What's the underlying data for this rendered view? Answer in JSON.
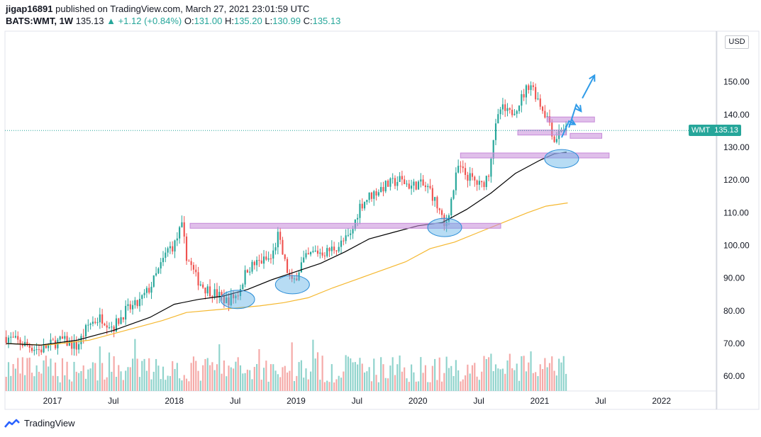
{
  "header": {
    "author": "jigap16891",
    "published": "published on TradingView.com, March 27, 2021 23:01:59 UTC",
    "symbol": "BATS:WMT, 1W",
    "last": "135.13",
    "arrow": "▲",
    "change": "+1.12 (+0.84%)",
    "o_label": "O:",
    "o_val": "131.00",
    "h_label": "H:",
    "h_val": "135.20",
    "l_label": "L:",
    "l_val": "130.99",
    "c_label": "C:",
    "c_val": "135.13"
  },
  "price_tag": {
    "ticker": "WMT",
    "value": "135.13"
  },
  "currency": "USD",
  "footer": {
    "brand": "TradingView",
    "logo_icon": "tradingview-logo-icon"
  },
  "colors": {
    "up": "#26a69a",
    "down": "#ef5350",
    "up_vol": "#8fd3cc",
    "down_vol": "#f5a9a7",
    "ma_black": "#000000",
    "ma_orange": "#f5b830",
    "zone": "#c78ad9",
    "circle": "#5fb1e6",
    "arrow": "#2f9be8"
  },
  "chart_data": {
    "type": "candlestick",
    "y_ticks": [
      "150.00",
      "140.00",
      "130.00",
      "120.00",
      "110.00",
      "100.00",
      "90.00",
      "80.00",
      "70.00",
      "60.00"
    ],
    "y_range": [
      55.5,
      165.5
    ],
    "x_ticks": [
      {
        "label": "2017",
        "date": 2017.0
      },
      {
        "label": "Jul",
        "date": 2017.5
      },
      {
        "label": "2018",
        "date": 2018.0
      },
      {
        "label": "Jul",
        "date": 2018.5
      },
      {
        "label": "2019",
        "date": 2019.0
      },
      {
        "label": "Jul",
        "date": 2019.5
      },
      {
        "label": "2020",
        "date": 2020.0
      },
      {
        "label": "Jul",
        "date": 2020.5
      },
      {
        "label": "2021",
        "date": 2021.0
      },
      {
        "label": "Jul",
        "date": 2021.5
      },
      {
        "label": "2022",
        "date": 2022.0
      }
    ],
    "x_range": [
      2016.61,
      2022.45
    ],
    "price_path": [
      [
        2016.62,
        72
      ],
      [
        2016.75,
        70
      ],
      [
        2016.9,
        68
      ],
      [
        2017.0,
        70
      ],
      [
        2017.08,
        71
      ],
      [
        2017.2,
        69
      ],
      [
        2017.3,
        76
      ],
      [
        2017.4,
        78
      ],
      [
        2017.5,
        75
      ],
      [
        2017.6,
        80
      ],
      [
        2017.7,
        82
      ],
      [
        2017.8,
        87
      ],
      [
        2017.88,
        93
      ],
      [
        2017.95,
        99
      ],
      [
        2018.0,
        100
      ],
      [
        2018.06,
        106
      ],
      [
        2018.1,
        97
      ],
      [
        2018.18,
        90
      ],
      [
        2018.25,
        87
      ],
      [
        2018.35,
        85
      ],
      [
        2018.43,
        83
      ],
      [
        2018.52,
        85
      ],
      [
        2018.6,
        93
      ],
      [
        2018.7,
        95
      ],
      [
        2018.8,
        96
      ],
      [
        2018.85,
        103
      ],
      [
        2018.92,
        93
      ],
      [
        2018.97,
        88
      ],
      [
        2019.05,
        95
      ],
      [
        2019.15,
        98
      ],
      [
        2019.25,
        98
      ],
      [
        2019.35,
        100
      ],
      [
        2019.45,
        103
      ],
      [
        2019.52,
        112
      ],
      [
        2019.6,
        115
      ],
      [
        2019.72,
        118
      ],
      [
        2019.85,
        120
      ],
      [
        2019.95,
        118
      ],
      [
        2020.0,
        119
      ],
      [
        2020.1,
        117
      ],
      [
        2020.18,
        110
      ],
      [
        2020.22,
        105
      ],
      [
        2020.28,
        115
      ],
      [
        2020.33,
        124
      ],
      [
        2020.38,
        122
      ],
      [
        2020.45,
        120
      ],
      [
        2020.52,
        118
      ],
      [
        2020.58,
        122
      ],
      [
        2020.62,
        133
      ],
      [
        2020.68,
        142
      ],
      [
        2020.75,
        140
      ],
      [
        2020.82,
        143
      ],
      [
        2020.88,
        147
      ],
      [
        2020.92,
        150
      ],
      [
        2020.97,
        146
      ],
      [
        2021.02,
        142
      ],
      [
        2021.08,
        138
      ],
      [
        2021.12,
        132
      ],
      [
        2021.18,
        136
      ],
      [
        2021.23,
        135.13
      ]
    ],
    "ma_black": [
      [
        2016.62,
        70
      ],
      [
        2016.9,
        69.5
      ],
      [
        2017.2,
        71
      ],
      [
        2017.5,
        74
      ],
      [
        2017.8,
        78
      ],
      [
        2018.0,
        82
      ],
      [
        2018.2,
        83.5
      ],
      [
        2018.4,
        84.5
      ],
      [
        2018.6,
        86.5
      ],
      [
        2018.8,
        89.5
      ],
      [
        2019.0,
        92
      ],
      [
        2019.2,
        94.5
      ],
      [
        2019.4,
        98
      ],
      [
        2019.6,
        102
      ],
      [
        2019.8,
        104
      ],
      [
        2020.0,
        106
      ],
      [
        2020.2,
        107
      ],
      [
        2020.4,
        111
      ],
      [
        2020.6,
        116
      ],
      [
        2020.8,
        122
      ],
      [
        2021.0,
        126
      ],
      [
        2021.12,
        128
      ],
      [
        2021.22,
        128.5
      ]
    ],
    "ma_orange": [
      [
        2016.62,
        70
      ],
      [
        2016.95,
        69.5
      ],
      [
        2017.3,
        71
      ],
      [
        2017.6,
        74
      ],
      [
        2017.9,
        77
      ],
      [
        2018.1,
        79.5
      ],
      [
        2018.4,
        80.5
      ],
      [
        2018.7,
        81.5
      ],
      [
        2018.9,
        82.5
      ],
      [
        2019.1,
        84
      ],
      [
        2019.3,
        87
      ],
      [
        2019.6,
        91
      ],
      [
        2019.9,
        95
      ],
      [
        2020.1,
        99
      ],
      [
        2020.3,
        101
      ],
      [
        2020.5,
        104
      ],
      [
        2020.7,
        107
      ],
      [
        2020.9,
        110
      ],
      [
        2021.05,
        112
      ],
      [
        2021.23,
        113
      ]
    ],
    "zones": [
      {
        "x0": 2018.13,
        "x1": 2020.68,
        "y": 106
      },
      {
        "x0": 2020.35,
        "x1": 2021.57,
        "y": 127.5
      },
      {
        "x0": 2020.82,
        "x1": 2021.22,
        "y": 134.5
      },
      {
        "x0": 2021.06,
        "x1": 2021.45,
        "y": 138.5
      },
      {
        "x0": 2021.25,
        "x1": 2021.51,
        "y": 133.5
      }
    ],
    "circles": [
      {
        "x": 2018.52,
        "y": 83.5
      },
      {
        "x": 2018.97,
        "y": 88
      },
      {
        "x": 2020.22,
        "y": 105.5
      },
      {
        "x": 2021.18,
        "y": 126.5
      }
    ],
    "arrows": [
      [
        [
          2021.18,
          133
        ],
        [
          2021.24,
          138
        ],
        [
          2021.29,
          137
        ]
      ],
      [
        [
          2021.24,
          136
        ],
        [
          2021.3,
          143
        ],
        [
          2021.34,
          141
        ]
      ],
      [
        [
          2021.35,
          145
        ],
        [
          2021.45,
          152
        ]
      ]
    ]
  }
}
